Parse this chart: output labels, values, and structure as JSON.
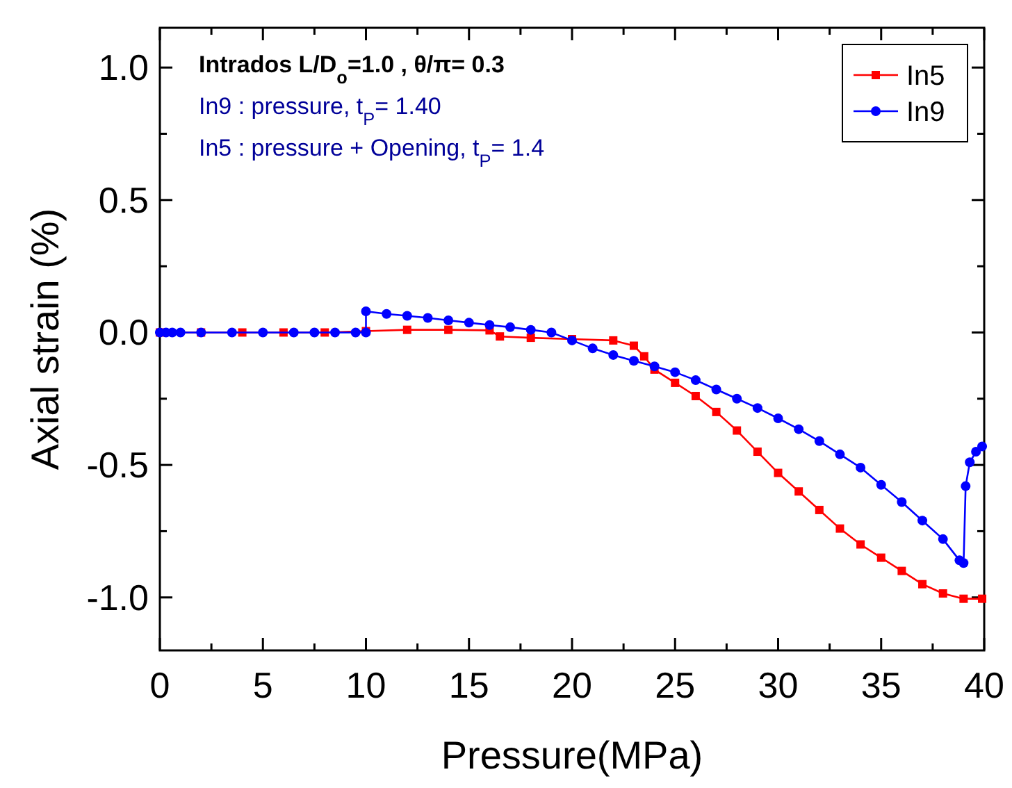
{
  "chart_data": {
    "type": "line",
    "xlabel": "Pressure(MPa)",
    "ylabel": "Axial strain (%)",
    "annotations": [
      "Intrados L/D$_{o}$=1.0 , θ/π= 0.3",
      "In9 : pressure, t$_{P}$= 1.40",
      "In5 : pressure + Opening, t$_{P}$= 1.4"
    ],
    "xlim": [
      0,
      40
    ],
    "xticks": [
      0,
      {
        "value": 2.5,
        "label": null
      },
      5,
      {
        "value": 7.5,
        "label": null
      },
      10,
      {
        "value": 12.5,
        "label": null
      },
      15,
      {
        "value": 17.5,
        "label": null
      },
      20,
      {
        "value": 22.5,
        "label": null
      },
      25,
      {
        "value": 27.5,
        "label": null
      },
      30,
      {
        "value": 32.5,
        "label": null
      },
      35,
      {
        "value": 37.5,
        "label": null
      },
      40
    ],
    "ylim": [
      -1.2,
      1.15
    ],
    "yticks": [
      {
        "value": -1,
        "label": "-1.0"
      },
      {
        "value": -0.75,
        "label": null
      },
      {
        "value": -0.5,
        "label": "-0.5"
      },
      {
        "value": -0.25,
        "label": null
      },
      {
        "value": 0,
        "label": "0.0"
      },
      {
        "value": 0.25,
        "label": null
      },
      {
        "value": 0.5,
        "label": "0.5"
      },
      {
        "value": 0.75,
        "label": null
      },
      {
        "value": 1,
        "label": "1.0"
      }
    ],
    "grid": false,
    "legend": "top right",
    "series": [
      {
        "name": "In5",
        "color": "#ff0000",
        "marker": "square",
        "x": [
          0,
          2,
          4,
          6,
          8,
          10,
          12,
          14,
          16,
          16.5,
          18,
          20,
          22,
          23,
          23.5,
          24,
          25,
          26,
          27,
          28,
          29,
          30,
          31,
          32,
          33,
          34,
          35,
          36,
          37,
          38,
          39,
          39.9
        ],
        "values": [
          0,
          0,
          0,
          0,
          0,
          0.005,
          0.01,
          0.01,
          0.008,
          -0.015,
          -0.02,
          -0.025,
          -0.03,
          -0.05,
          -0.09,
          -0.14,
          -0.19,
          -0.24,
          -0.3,
          -0.37,
          -0.45,
          -0.53,
          -0.6,
          -0.67,
          -0.74,
          -0.8,
          -0.85,
          -0.9,
          -0.95,
          -0.985,
          -1.005,
          -1.005
        ]
      },
      {
        "name": "In9",
        "color": "#0000ff",
        "marker": "circle",
        "x": [
          0,
          0.3,
          0.6,
          1,
          2,
          3.5,
          5,
          6.5,
          7.5,
          8.5,
          9.5,
          10,
          10,
          11,
          12,
          13,
          14,
          15,
          16,
          17,
          18,
          19,
          20,
          21,
          22,
          23,
          24,
          25,
          26,
          27,
          28,
          29,
          30,
          31,
          32,
          33,
          34,
          35,
          36,
          37,
          38,
          38.8,
          39,
          39.1,
          39.3,
          39.6,
          39.9
        ],
        "values": [
          0,
          0,
          0,
          0,
          0,
          0,
          0,
          0,
          0,
          0,
          0,
          0,
          0.08,
          0.07,
          0.063,
          0.055,
          0.046,
          0.037,
          0.028,
          0.02,
          0.01,
          0,
          -0.03,
          -0.06,
          -0.085,
          -0.107,
          -0.128,
          -0.15,
          -0.18,
          -0.215,
          -0.25,
          -0.285,
          -0.324,
          -0.365,
          -0.41,
          -0.46,
          -0.51,
          -0.575,
          -0.64,
          -0.71,
          -0.78,
          -0.86,
          -0.87,
          -0.58,
          -0.49,
          -0.45,
          -0.43
        ]
      }
    ]
  }
}
